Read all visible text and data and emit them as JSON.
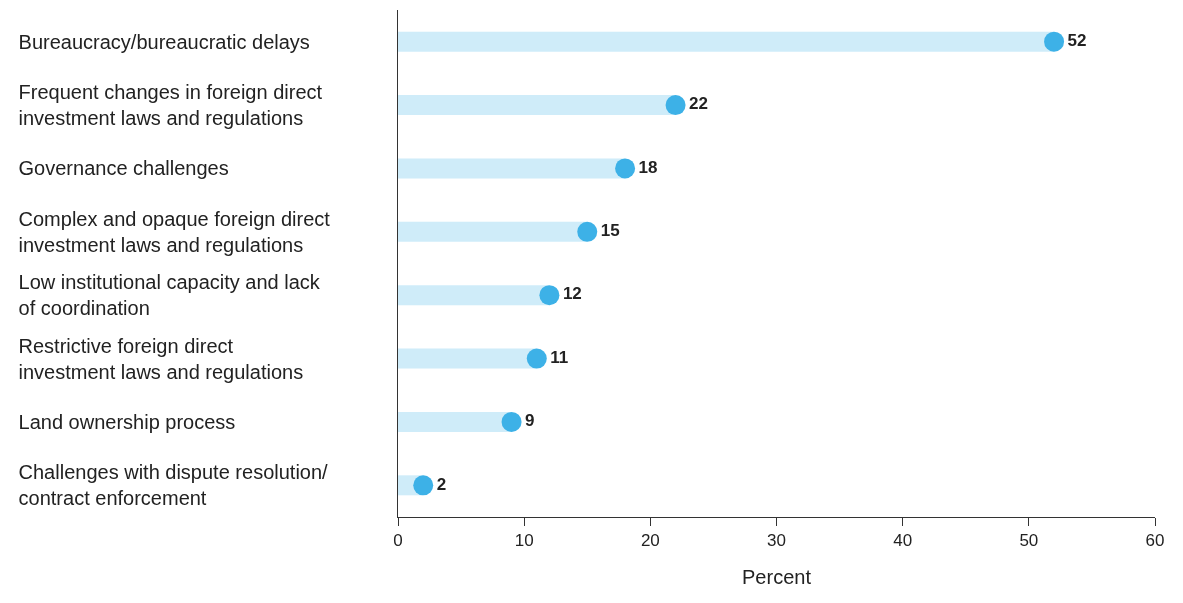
{
  "chart_data": {
    "type": "lollipop",
    "orientation": "horizontal",
    "xlabel": "Percent",
    "categories": [
      "Bureaucracy/bureaucratic delays",
      "Frequent changes in foreign direct investment laws and regulations",
      "Governance challenges",
      "Complex and opaque foreign direct investment laws and regulations",
      "Low institutional capacity and lack of coordination",
      "Restrictive foreign direct investment laws and regulations",
      "Land ownership process",
      "Challenges with dispute resolution/contract enforcement"
    ],
    "series": [
      {
        "color": "#3db1e7",
        "values": [
          52,
          22,
          18,
          15,
          12,
          11,
          9,
          2
        ]
      }
    ],
    "xlim": [
      0,
      60
    ],
    "xticks": [
      0,
      10,
      20,
      30,
      40,
      50,
      60
    ],
    "data_labels": true,
    "grid": false,
    "marker": "circle"
  }
}
